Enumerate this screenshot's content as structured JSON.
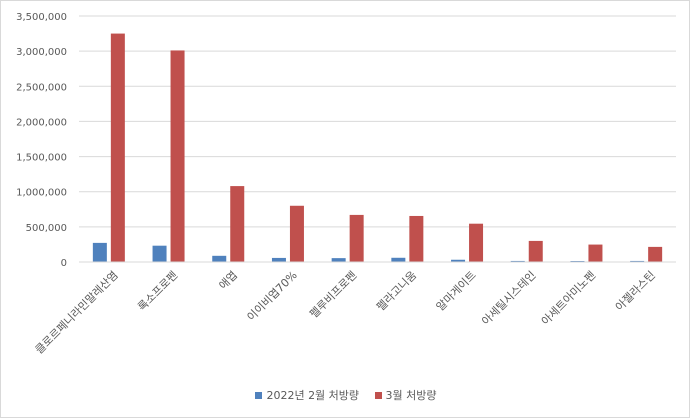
{
  "chart_data": {
    "type": "bar",
    "categories": [
      "클로르페니라민말레산염",
      "록소프로펜",
      "애엽",
      "이이비엽70%",
      "펠루비프로펜",
      "펠라고니움",
      "알마게이트",
      "아세틸시스테인",
      "아세트아미노펜",
      "아젤라스틴"
    ],
    "series": [
      {
        "name": "2022년 2월 처방량",
        "color": "#4f81bd",
        "values": [
          272000,
          232000,
          88000,
          58000,
          55000,
          60000,
          32000,
          15000,
          14000,
          15000
        ]
      },
      {
        "name": "3월 처방량",
        "color": "#c0504d",
        "values": [
          3250000,
          3010000,
          1080000,
          800000,
          670000,
          655000,
          545000,
          300000,
          248000,
          215000
        ]
      }
    ],
    "ylim": [
      0,
      3500000
    ],
    "yticks": [
      "0",
      "500,000",
      "1,000,000",
      "1,500,000",
      "2,000,000",
      "2,500,000",
      "3,000,000",
      "3,500,000"
    ],
    "grid": true,
    "legend_position": "bottom",
    "title": "",
    "xlabel": "",
    "ylabel": ""
  }
}
